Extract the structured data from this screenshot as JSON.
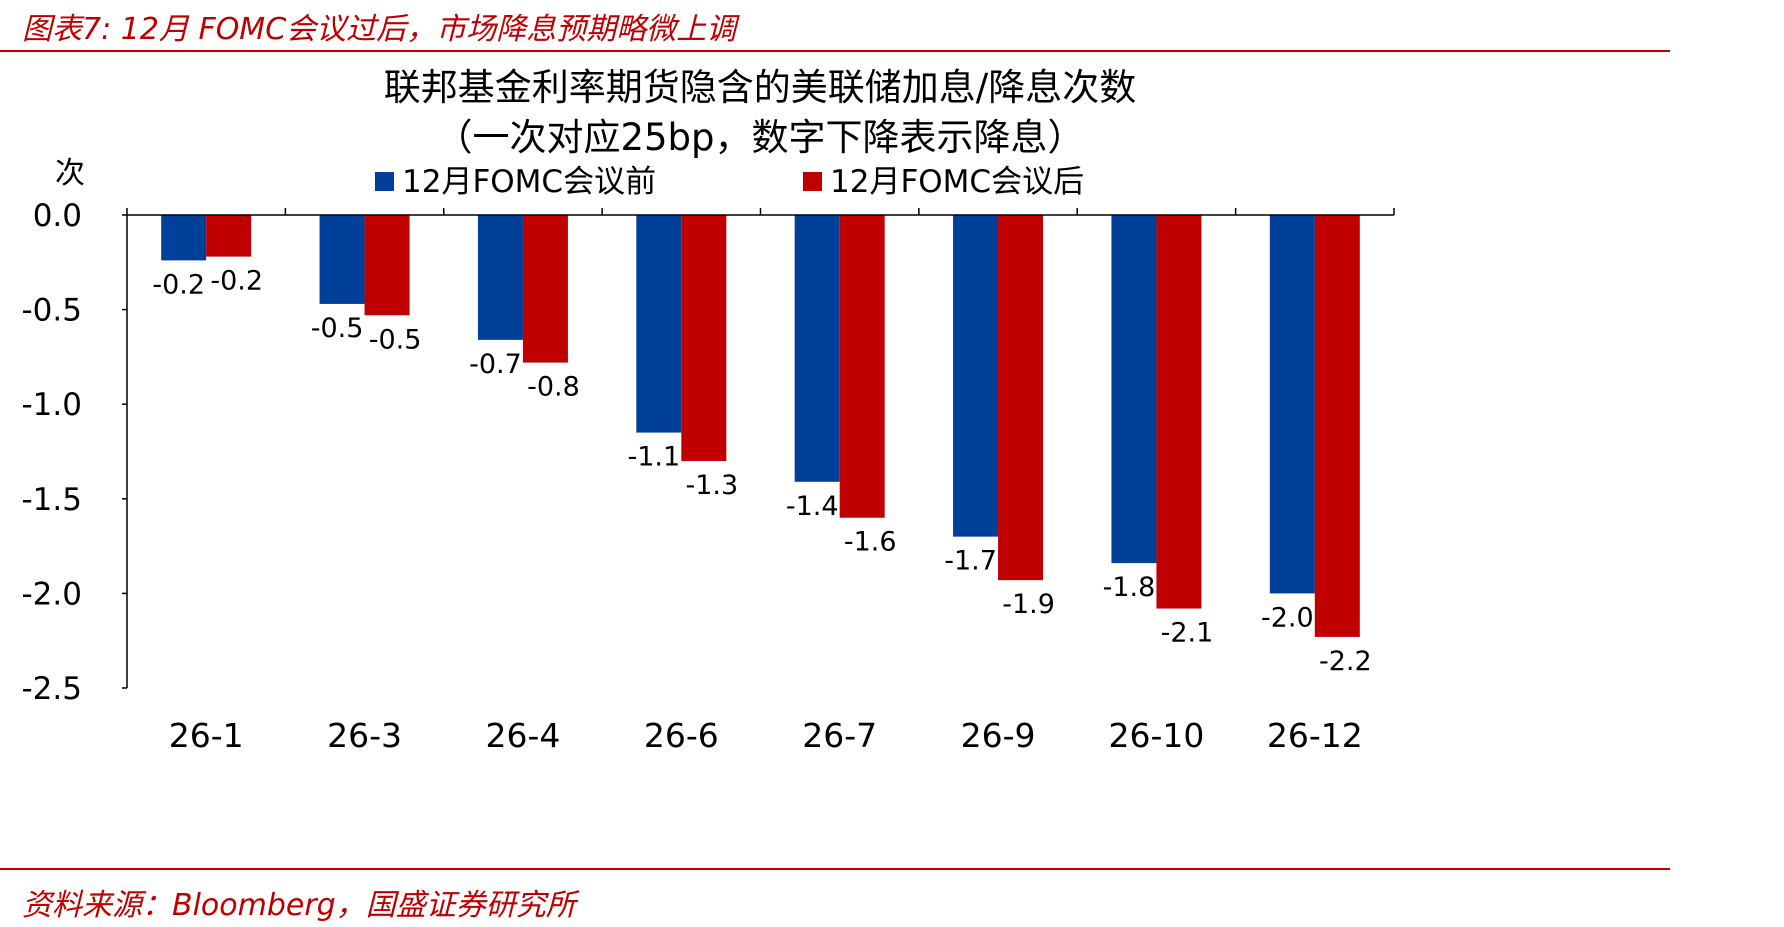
{
  "figure_title": "图表7: 12月 FOMC会议过后，市场降息预期略微上调",
  "source": "资料来源：Bloomberg，国盛证券研究所",
  "chart_data": {
    "type": "bar",
    "title": "联邦基金利率期货隐含的美联储加息/降息次数",
    "subtitle": "（一次对应25bp，数字下降表示降息）",
    "ylabel": "次",
    "xlabel": "",
    "categories": [
      "26-1",
      "26-3",
      "26-4",
      "26-6",
      "26-7",
      "26-9",
      "26-10",
      "26-12"
    ],
    "series": [
      {
        "name": "12月FOMC会议前",
        "color": "#003f9a",
        "values": [
          -0.24,
          -0.47,
          -0.66,
          -1.15,
          -1.41,
          -1.7,
          -1.84,
          -2.0
        ],
        "labels": [
          "-0.2",
          "-0.5",
          "-0.7",
          "-1.1",
          "-1.4",
          "-1.7",
          "-1.8",
          "-2.0"
        ]
      },
      {
        "name": "12月FOMC会议后",
        "color": "#c00000",
        "values": [
          -0.22,
          -0.53,
          -0.78,
          -1.3,
          -1.6,
          -1.93,
          -2.08,
          -2.23
        ],
        "labels": [
          "-0.2",
          "-0.5",
          "-0.8",
          "-1.3",
          "-1.6",
          "-1.9",
          "-2.1",
          "-2.2"
        ]
      }
    ],
    "ylim": [
      -2.5,
      0
    ],
    "yticks": [
      "0.0",
      "-0.5",
      "-1.0",
      "-1.5",
      "-2.0",
      "-2.5"
    ],
    "legend_position": "top",
    "grid": false
  }
}
